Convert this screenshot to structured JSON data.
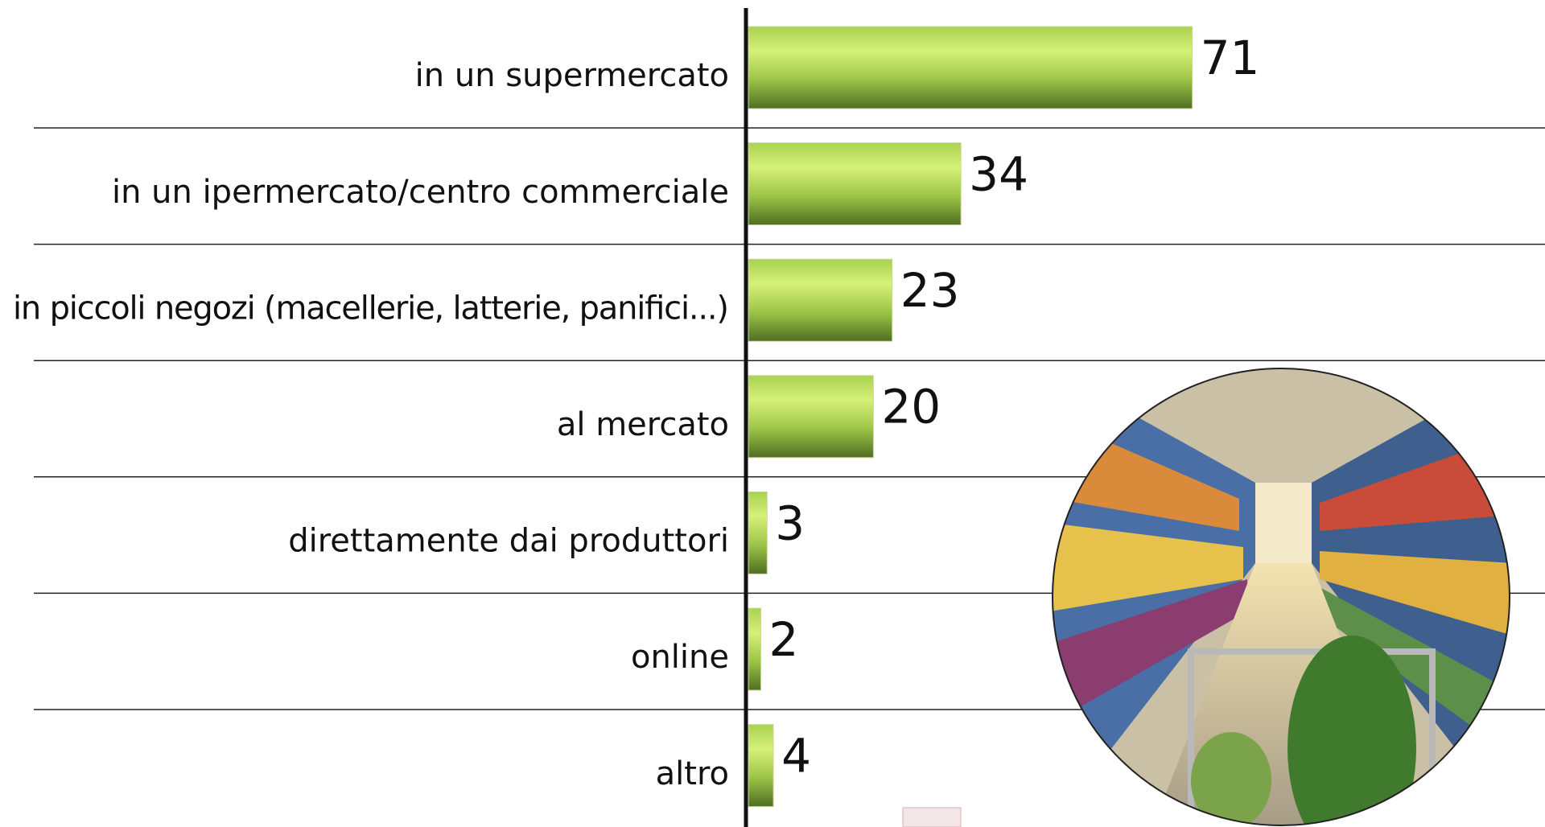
{
  "chart_data": {
    "type": "hbar",
    "categories": [
      "in un supermercato",
      "in un ipermercato/centro commerciale",
      "in piccoli negozi (macellerie, latterie, panifici...)",
      "al mercato",
      "direttamente dai produttori",
      "online",
      "altro"
    ],
    "values": [
      71,
      34,
      23,
      20,
      3,
      2,
      4
    ],
    "color": "#8fc23f"
  }
}
